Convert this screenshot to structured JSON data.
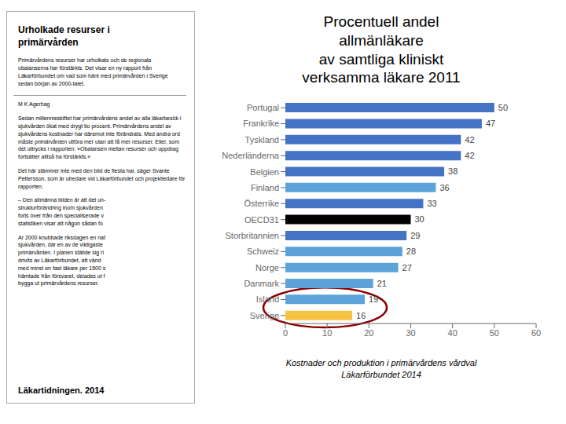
{
  "chart_data": {
    "type": "bar",
    "orientation": "horizontal",
    "title": "Procentuell andel\nallmänläkare\nav samtliga kliniskt\nverksamma läkare 2011",
    "categories": [
      "Portugal",
      "Frankrike",
      "Tyskland",
      "Nederländerna",
      "Belgien",
      "Finland",
      "Österrike",
      "OECD31",
      "Storbritannien",
      "Schweiz",
      "Norge",
      "Danmark",
      "Island",
      "Sverige"
    ],
    "values": [
      50,
      47,
      42,
      42,
      38,
      36,
      33,
      30,
      29,
      28,
      27,
      21,
      19,
      16
    ],
    "colors": [
      "#4472C4",
      "#4472C4",
      "#4472C4",
      "#4472C4",
      "#4472C4",
      "#5BA3D9",
      "#4472C4",
      "#000000",
      "#4472C4",
      "#5BA3D9",
      "#5BA3D9",
      "#5BA3D9",
      "#5BA3D9",
      "#F5C242"
    ],
    "xlim": [
      0,
      60
    ],
    "xticks": [
      0,
      10,
      20,
      30,
      40,
      50,
      60
    ],
    "data_labels": true,
    "grid": false,
    "annotations": [
      "Urholkade resurser i\nprimärvården",
      "Primärvårdens resurser har urholkats och de regionala\nobalanserna har förstärkts. Det visar en ny rapport från\nLäkarförbundet om vad som hänt med primärvården i Sverige\nsedan början av 2000-talet.",
      "M K Agerhag",
      "Sedan millennieskiftet har primärvårdens andel av alla läkarbesök i\nsjukvården ökat med drygt tio procent. Primärvårdens andel av\nsjukvårdens kostnader har däremot inte förändrats. Med andra ord\nmåste primärvården utföra mer utan att få mer resurser. Eller, som\ndet uttrycks i rapporten: »Obalansen mellan resurser och uppdrag\nfortsätter alltså ha förstärkts.«",
      "Det här stämmer inte med den bild de flesta har, säger Svante\nPettersson, som är utredare vid Läkarförbundet och projektledare för\nrapporten.",
      "– Den allmänna bilden är att det un-\nstrukturförändring inom sjukvården\nforts över från den specialiserade v\nstatistiken visar att någon sådan fo",
      "Ar 2000 knubbade riksdagen en nat\nsjukvården, där en av de viktigaste\nprimärvården. I planen ställde sig ri\ndrivits av Läkarförbundet, att vänd\nmed minst en fast läkare per 1500 s\nhämtade från försvaret, delades ut f\nbygga ut primärvårdens resurser.",
      "Läkartidningen. 2014",
      "Kostnader och produktion i primärvårdens vårdval\nLäkarförbundet 2014"
    ]
  }
}
